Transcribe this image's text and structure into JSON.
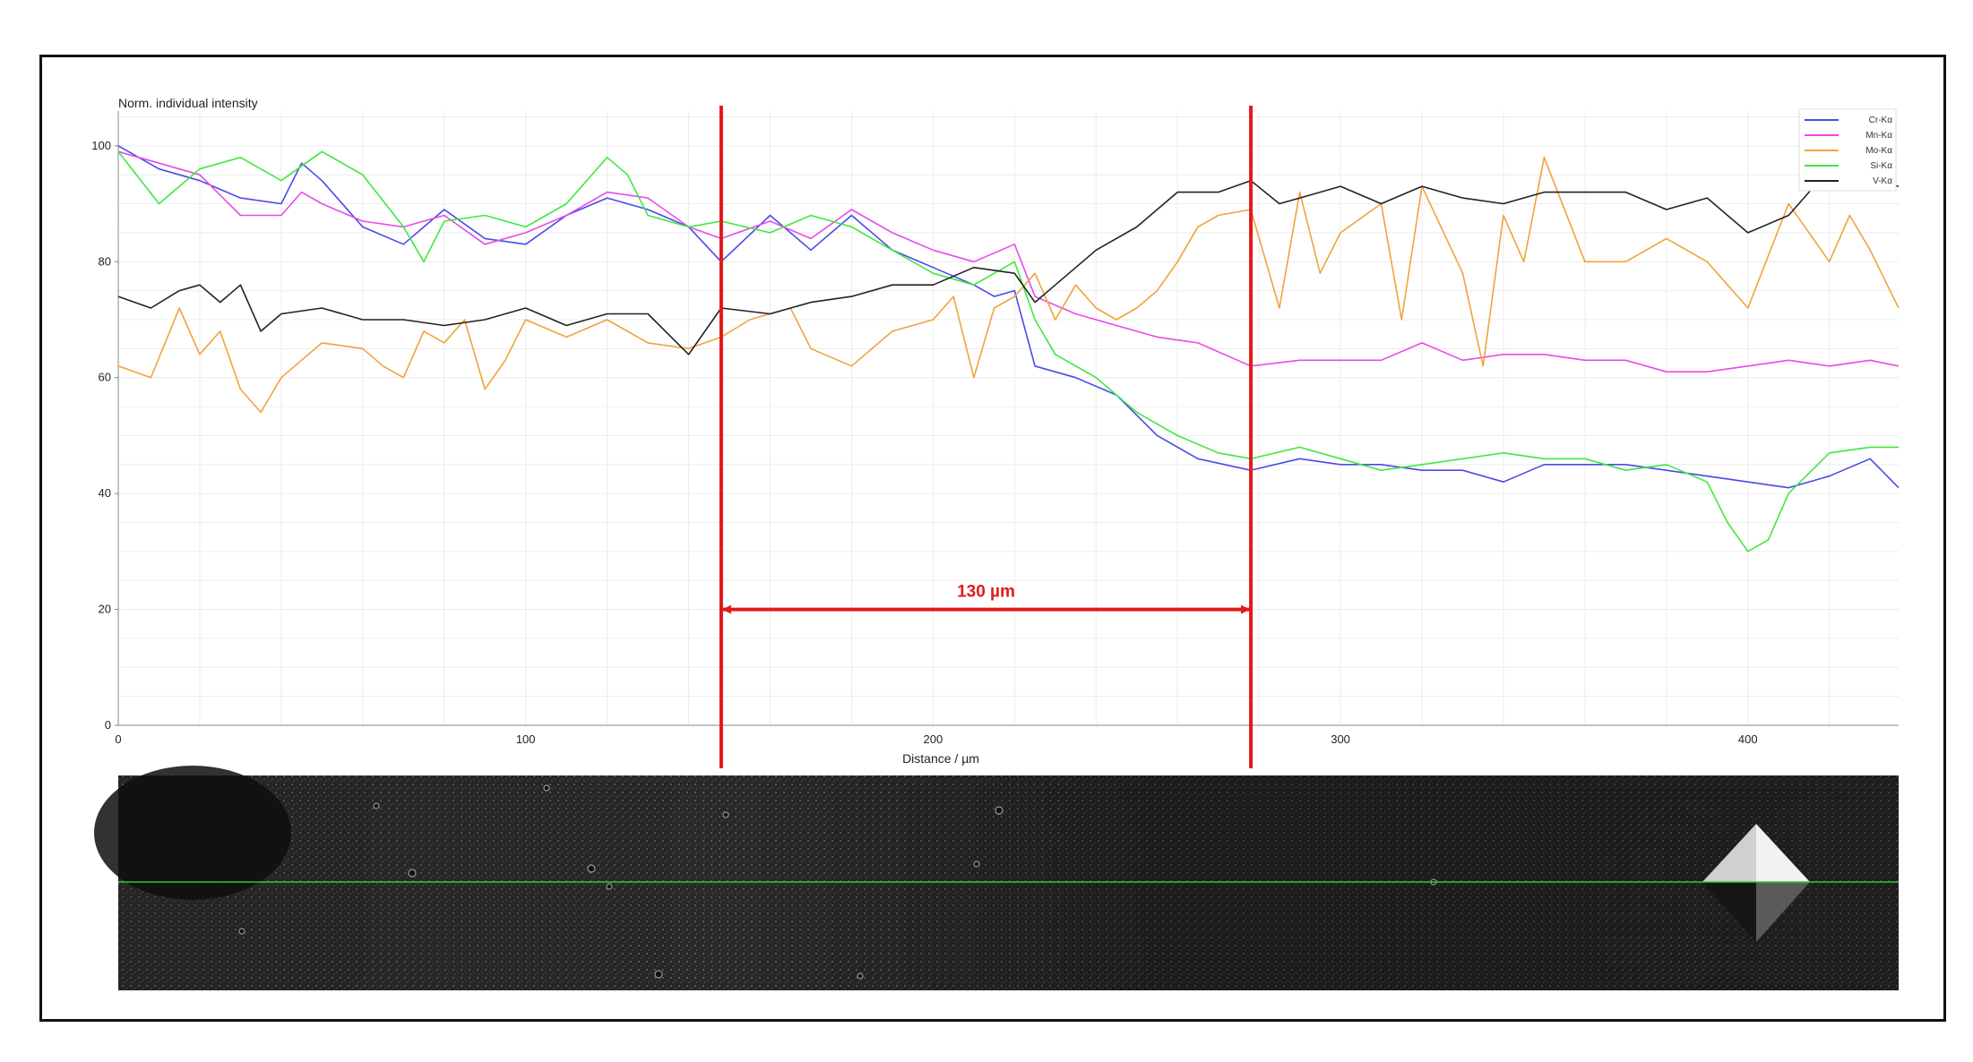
{
  "chart_data": {
    "type": "line",
    "title": "",
    "ylabel": "Norm. individual intensity",
    "xlabel": "Distance / µm",
    "xlim": [
      0,
      437
    ],
    "ylim": [
      0,
      106
    ],
    "x_ticks": [
      0,
      100,
      200,
      300,
      400
    ],
    "y_ticks": [
      0,
      20,
      40,
      60,
      80,
      100
    ],
    "grid": true,
    "legend_position": "top-right",
    "series": [
      {
        "name": "Cr-Kα",
        "color": "#4a4ae8",
        "x": [
          0,
          10,
          20,
          30,
          40,
          45,
          50,
          60,
          70,
          80,
          90,
          100,
          110,
          120,
          130,
          140,
          148,
          160,
          170,
          180,
          190,
          200,
          210,
          215,
          220,
          225,
          235,
          245,
          255,
          265,
          278,
          290,
          300,
          310,
          320,
          330,
          340,
          350,
          360,
          370,
          380,
          390,
          400,
          410,
          420,
          430,
          437
        ],
        "y": [
          100,
          96,
          94,
          91,
          90,
          97,
          94,
          86,
          83,
          89,
          84,
          83,
          88,
          91,
          89,
          86,
          80,
          88,
          82,
          88,
          82,
          79,
          76,
          74,
          75,
          62,
          60,
          57,
          50,
          46,
          44,
          46,
          45,
          45,
          44,
          44,
          42,
          45,
          45,
          45,
          44,
          43,
          42,
          41,
          43,
          46,
          41
        ]
      },
      {
        "name": "Mn-Kα",
        "color": "#e84ae8",
        "x": [
          0,
          10,
          20,
          30,
          40,
          45,
          50,
          60,
          70,
          80,
          90,
          100,
          110,
          120,
          130,
          140,
          148,
          160,
          170,
          180,
          190,
          200,
          210,
          220,
          225,
          235,
          245,
          255,
          265,
          278,
          290,
          300,
          310,
          320,
          330,
          340,
          350,
          360,
          370,
          380,
          390,
          400,
          410,
          420,
          430,
          437
        ],
        "y": [
          99,
          97,
          95,
          88,
          88,
          92,
          90,
          87,
          86,
          88,
          83,
          85,
          88,
          92,
          91,
          86,
          84,
          87,
          84,
          89,
          85,
          82,
          80,
          83,
          74,
          71,
          69,
          67,
          66,
          62,
          63,
          63,
          63,
          66,
          63,
          64,
          64,
          63,
          63,
          61,
          61,
          62,
          63,
          62,
          63,
          62
        ]
      },
      {
        "name": "Mo-Kα",
        "color": "#f0a33c",
        "x": [
          0,
          8,
          15,
          20,
          25,
          30,
          35,
          40,
          50,
          60,
          65,
          70,
          75,
          80,
          85,
          90,
          95,
          100,
          110,
          120,
          130,
          140,
          148,
          155,
          165,
          170,
          180,
          190,
          200,
          205,
          210,
          215,
          220,
          225,
          230,
          235,
          240,
          245,
          250,
          255,
          260,
          265,
          270,
          278,
          285,
          290,
          295,
          300,
          310,
          315,
          320,
          330,
          335,
          340,
          345,
          350,
          360,
          370,
          380,
          390,
          400,
          410,
          420,
          425,
          430,
          437
        ],
        "y": [
          62,
          60,
          72,
          64,
          68,
          58,
          54,
          60,
          66,
          65,
          62,
          60,
          68,
          66,
          70,
          58,
          63,
          70,
          67,
          70,
          66,
          65,
          67,
          70,
          72,
          65,
          62,
          68,
          70,
          74,
          60,
          72,
          74,
          78,
          70,
          76,
          72,
          70,
          72,
          75,
          80,
          86,
          88,
          89,
          72,
          92,
          78,
          85,
          90,
          70,
          93,
          78,
          62,
          88,
          80,
          98,
          80,
          80,
          84,
          80,
          72,
          90,
          80,
          88,
          82,
          72
        ]
      },
      {
        "name": "Si-Kα",
        "color": "#3fe83f",
        "x": [
          0,
          10,
          20,
          30,
          40,
          50,
          60,
          70,
          75,
          80,
          90,
          100,
          110,
          120,
          125,
          130,
          140,
          148,
          160,
          170,
          180,
          190,
          200,
          210,
          220,
          225,
          230,
          240,
          250,
          260,
          270,
          278,
          290,
          300,
          310,
          320,
          330,
          340,
          350,
          360,
          370,
          380,
          390,
          395,
          400,
          405,
          410,
          420,
          430,
          437
        ],
        "y": [
          99,
          90,
          96,
          98,
          94,
          99,
          95,
          86,
          80,
          87,
          88,
          86,
          90,
          98,
          95,
          88,
          86,
          87,
          85,
          88,
          86,
          82,
          78,
          76,
          80,
          70,
          64,
          60,
          54,
          50,
          47,
          46,
          48,
          46,
          44,
          45,
          46,
          47,
          46,
          46,
          44,
          45,
          42,
          35,
          30,
          32,
          40,
          47,
          48,
          48
        ]
      },
      {
        "name": "V-Kα",
        "color": "#222222",
        "x": [
          0,
          8,
          15,
          20,
          25,
          30,
          35,
          40,
          50,
          60,
          70,
          80,
          90,
          100,
          110,
          120,
          130,
          140,
          148,
          160,
          170,
          180,
          190,
          200,
          210,
          220,
          225,
          230,
          240,
          250,
          260,
          270,
          278,
          285,
          290,
          300,
          310,
          320,
          330,
          340,
          350,
          360,
          370,
          380,
          390,
          400,
          410,
          415,
          420,
          425,
          430,
          437
        ],
        "y": [
          74,
          72,
          75,
          76,
          73,
          76,
          68,
          71,
          72,
          70,
          70,
          69,
          70,
          72,
          69,
          71,
          71,
          64,
          72,
          71,
          73,
          74,
          76,
          76,
          79,
          78,
          73,
          76,
          82,
          86,
          92,
          92,
          94,
          90,
          91,
          93,
          90,
          93,
          91,
          90,
          92,
          92,
          92,
          89,
          91,
          85,
          88,
          92,
          97,
          96,
          94,
          93
        ]
      }
    ],
    "annotations": [
      {
        "type": "vline",
        "x": 148,
        "color": "#e01b1b"
      },
      {
        "type": "vline",
        "x": 278,
        "color": "#e01b1b"
      },
      {
        "type": "arrow",
        "x_from": 148,
        "x_to": 278,
        "y": 20,
        "label": "130 µm",
        "color": "#e01b1b"
      }
    ]
  }
}
